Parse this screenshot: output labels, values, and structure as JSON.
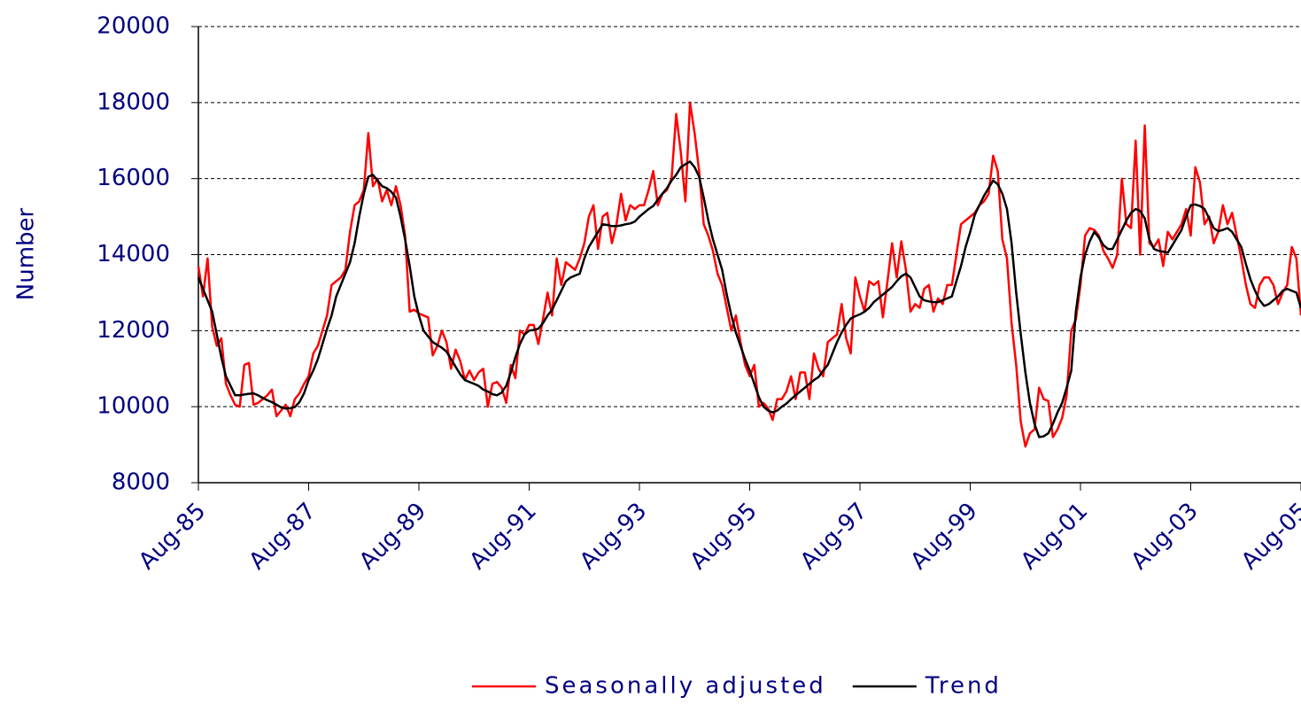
{
  "chart_data": {
    "type": "line",
    "categories": [
      "Aug-85",
      null,
      null,
      null,
      null,
      null,
      null,
      null,
      null,
      null,
      null,
      null,
      null,
      null,
      null,
      null,
      null,
      null,
      null,
      null,
      null,
      null,
      null,
      null,
      "Aug-87",
      null,
      null,
      null,
      null,
      null,
      null,
      null,
      null,
      null,
      null,
      null,
      null,
      null,
      null,
      null,
      null,
      null,
      null,
      null,
      null,
      null,
      null,
      null,
      "Aug-89",
      null,
      null,
      null,
      null,
      null,
      null,
      null,
      null,
      null,
      null,
      null,
      null,
      null,
      null,
      null,
      null,
      null,
      null,
      null,
      null,
      null,
      null,
      null,
      "Aug-91",
      null,
      null,
      null,
      null,
      null,
      null,
      null,
      null,
      null,
      null,
      null,
      null,
      null,
      null,
      null,
      null,
      null,
      null,
      null,
      null,
      null,
      null,
      null,
      "Aug-93",
      null,
      null,
      null,
      null,
      null,
      null,
      null,
      null,
      null,
      null,
      null,
      null,
      null,
      null,
      null,
      null,
      null,
      null,
      null,
      null,
      null,
      null,
      null,
      "Aug-95",
      null,
      null,
      null,
      null,
      null,
      null,
      null,
      null,
      null,
      null,
      null,
      null,
      null,
      null,
      null,
      null,
      null,
      null,
      null,
      null,
      null,
      null,
      null,
      "Aug-97",
      null,
      null,
      null,
      null,
      null,
      null,
      null,
      null,
      null,
      null,
      null,
      null,
      null,
      null,
      null,
      null,
      null,
      null,
      null,
      null,
      null,
      null,
      null,
      "Aug-99",
      null,
      null,
      null,
      null,
      null,
      null,
      null,
      null,
      null,
      null,
      null,
      null,
      null,
      null,
      null,
      null,
      null,
      null,
      null,
      null,
      null,
      null,
      null,
      "Aug-01",
      null,
      null,
      null,
      null,
      null,
      null,
      null,
      null,
      null,
      null,
      null,
      null,
      null,
      null,
      null,
      null,
      null,
      null,
      null,
      null,
      null,
      null,
      null,
      "Aug-03",
      null,
      null,
      null,
      null,
      null,
      null,
      null,
      null,
      null,
      null,
      null,
      null,
      null,
      null,
      null,
      null,
      null,
      null,
      null,
      null,
      null,
      null,
      null,
      "Aug-05"
    ],
    "series": [
      {
        "name": "Seasonally adjusted",
        "color": "#ff0000",
        "values": [
          13700,
          12900,
          13900,
          12100,
          11600,
          11800,
          10600,
          10300,
          10050,
          10000,
          11100,
          11150,
          10050,
          10100,
          10200,
          10300,
          10450,
          9750,
          9900,
          10050,
          9750,
          10200,
          10350,
          10600,
          10800,
          11400,
          11600,
          12000,
          12400,
          13200,
          13300,
          13400,
          13600,
          14600,
          15300,
          15400,
          15700,
          17200,
          15800,
          16000,
          15400,
          15700,
          15300,
          15800,
          15300,
          14500,
          12500,
          12550,
          12450,
          12400,
          12350,
          11350,
          11600,
          12000,
          11700,
          11000,
          11500,
          11200,
          10700,
          10950,
          10700,
          10900,
          11000,
          10000,
          10600,
          10650,
          10500,
          10100,
          11100,
          10750,
          12000,
          11900,
          12150,
          12150,
          11650,
          12300,
          13000,
          12400,
          13900,
          13200,
          13800,
          13700,
          13600,
          13900,
          14300,
          15000,
          15300,
          14150,
          15000,
          15100,
          14300,
          14800,
          15600,
          14900,
          15300,
          15200,
          15300,
          15300,
          15700,
          16200,
          15300,
          15600,
          15700,
          16000,
          17700,
          16700,
          15400,
          18000,
          17200,
          16200,
          14800,
          14500,
          14100,
          13500,
          13200,
          12600,
          12000,
          12400,
          11700,
          11100,
          10800,
          11100,
          10000,
          10100,
          9950,
          9650,
          10200,
          10200,
          10400,
          10800,
          10200,
          10900,
          10900,
          10200,
          11400,
          11000,
          10800,
          11700,
          11800,
          11900,
          12700,
          11800,
          11400,
          13400,
          12900,
          12500,
          13300,
          13200,
          13300,
          12350,
          13300,
          14300,
          13400,
          14350,
          13600,
          12500,
          12700,
          12600,
          13100,
          13200,
          12500,
          12850,
          12700,
          13200,
          13200,
          14000,
          14800,
          14900,
          15000,
          15100,
          15300,
          15400,
          15600,
          16600,
          16200,
          14400,
          13900,
          12200,
          11100,
          9600,
          8950,
          9300,
          9400,
          10500,
          10200,
          10150,
          9200,
          9400,
          9700,
          10300,
          12000,
          12300,
          13200,
          14500,
          14700,
          14650,
          14500,
          14100,
          13900,
          13650,
          14000,
          16000,
          14800,
          14700,
          17000,
          14000,
          17400,
          14300,
          14200,
          14400,
          13700,
          14600,
          14400,
          14600,
          14800,
          15200,
          14500,
          16300,
          15900,
          14800,
          15000,
          14300,
          14600,
          15300,
          14800,
          15100,
          14500,
          13900,
          13200,
          12700,
          12600,
          13200,
          13400,
          13400,
          13200,
          12700,
          13000,
          13200,
          14200,
          13900,
          12400
        ]
      },
      {
        "name": "Trend",
        "color": "#000000",
        "values": [
          13400,
          13100,
          12800,
          12500,
          11900,
          11300,
          10800,
          10550,
          10300,
          10300,
          10320,
          10340,
          10350,
          10300,
          10230,
          10170,
          10120,
          10050,
          9980,
          9950,
          9960,
          9990,
          10120,
          10350,
          10700,
          10950,
          11250,
          11650,
          12050,
          12400,
          12900,
          13200,
          13500,
          13800,
          14300,
          15000,
          15600,
          16050,
          16100,
          15950,
          15800,
          15750,
          15650,
          15500,
          15000,
          14400,
          13700,
          12900,
          12400,
          12000,
          11850,
          11700,
          11620,
          11550,
          11450,
          11250,
          11050,
          10850,
          10700,
          10650,
          10600,
          10550,
          10450,
          10400,
          10330,
          10300,
          10370,
          10550,
          10900,
          11300,
          11650,
          11900,
          12000,
          12020,
          12050,
          12200,
          12400,
          12550,
          12800,
          13050,
          13300,
          13400,
          13450,
          13500,
          13900,
          14200,
          14400,
          14600,
          14800,
          14780,
          14750,
          14750,
          14770,
          14800,
          14820,
          14870,
          15000,
          15100,
          15200,
          15280,
          15450,
          15600,
          15750,
          15950,
          16100,
          16300,
          16380,
          16450,
          16300,
          16050,
          15500,
          14900,
          14400,
          14000,
          13600,
          12950,
          12400,
          11950,
          11600,
          11250,
          10950,
          10600,
          10250,
          10000,
          9900,
          9850,
          9900,
          10000,
          10080,
          10200,
          10300,
          10400,
          10500,
          10600,
          10700,
          10780,
          10950,
          11100,
          11400,
          11700,
          11950,
          12150,
          12320,
          12380,
          12430,
          12500,
          12600,
          12750,
          12850,
          12950,
          13050,
          13150,
          13300,
          13430,
          13500,
          13400,
          13150,
          12900,
          12800,
          12770,
          12750,
          12750,
          12800,
          12850,
          12900,
          13300,
          13700,
          14200,
          14600,
          15050,
          15300,
          15550,
          15750,
          15950,
          15850,
          15600,
          15200,
          14300,
          13000,
          11900,
          10900,
          10100,
          9550,
          9200,
          9220,
          9300,
          9550,
          9850,
          10100,
          10500,
          10950,
          12500,
          13400,
          14000,
          14350,
          14600,
          14450,
          14250,
          14150,
          14150,
          14400,
          14650,
          14900,
          15100,
          15200,
          15150,
          14950,
          14400,
          14150,
          14100,
          14080,
          14050,
          14250,
          14450,
          14650,
          15000,
          15300,
          15320,
          15280,
          15200,
          14950,
          14700,
          14620,
          14650,
          14700,
          14600,
          14400,
          14200,
          13750,
          13350,
          13050,
          12800,
          12650,
          12700,
          12800,
          12900,
          13050,
          13100,
          13050,
          13000,
          12600
        ]
      }
    ],
    "ylabel": "Number",
    "ylim": [
      8000,
      20000
    ],
    "yticks": [
      8000,
      10000,
      12000,
      14000,
      16000,
      18000,
      20000
    ],
    "grid": true,
    "legend": "bottom"
  }
}
